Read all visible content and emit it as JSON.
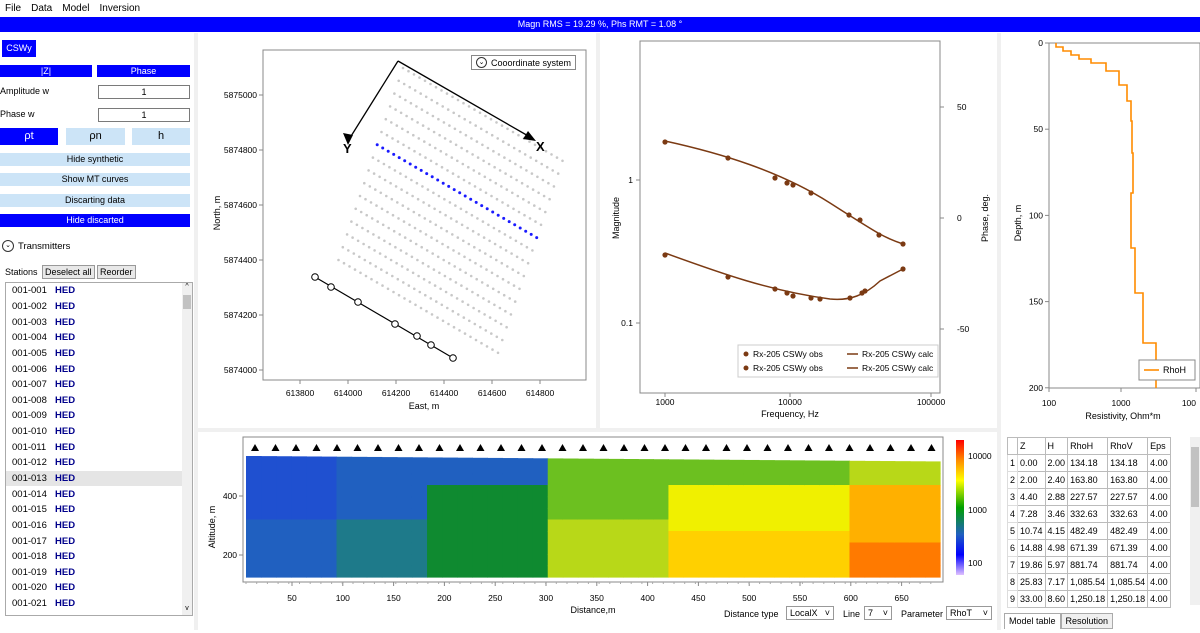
{
  "menu": [
    "File",
    "Data",
    "Model",
    "Inversion"
  ],
  "status": "Magn RMS = 19.29 %,  Phs RMT = 1.08 °",
  "left": {
    "component": "CSWy",
    "abs_btn": "|Z|",
    "phase_btn": "Phase",
    "amp_label": "Amplitude w",
    "amp_value": "1",
    "phase_label": "Phase w",
    "phase_value": "1",
    "rho_t": "ρt",
    "rho_n": "ρn",
    "h": "h",
    "hide_synthetic": "Hide synthetic",
    "show_mt": "Show MT curves",
    "discarting": "Discarting data",
    "hide_discarted": "Hide discarted",
    "transmitters": "Transmitters",
    "stations_label": "Stations",
    "deselect_all": "Deselect all",
    "reorder": "Reorder",
    "stations": [
      {
        "id": "001-001",
        "type": "HED"
      },
      {
        "id": "001-002",
        "type": "HED"
      },
      {
        "id": "001-003",
        "type": "HED"
      },
      {
        "id": "001-004",
        "type": "HED"
      },
      {
        "id": "001-005",
        "type": "HED"
      },
      {
        "id": "001-006",
        "type": "HED"
      },
      {
        "id": "001-007",
        "type": "HED"
      },
      {
        "id": "001-008",
        "type": "HED"
      },
      {
        "id": "001-009",
        "type": "HED"
      },
      {
        "id": "001-010",
        "type": "HED"
      },
      {
        "id": "001-011",
        "type": "HED"
      },
      {
        "id": "001-012",
        "type": "HED"
      },
      {
        "id": "001-013",
        "type": "HED"
      },
      {
        "id": "001-014",
        "type": "HED"
      },
      {
        "id": "001-015",
        "type": "HED"
      },
      {
        "id": "001-016",
        "type": "HED"
      },
      {
        "id": "001-017",
        "type": "HED"
      },
      {
        "id": "001-018",
        "type": "HED"
      },
      {
        "id": "001-019",
        "type": "HED"
      },
      {
        "id": "001-020",
        "type": "HED"
      },
      {
        "id": "001-021",
        "type": "HED"
      }
    ]
  },
  "map": {
    "coord_btn": "Cooordinate system",
    "xlabel": "East, m",
    "ylabel": "North, m",
    "xticks": [
      "613800",
      "614000",
      "614200",
      "614400",
      "614600",
      "614800"
    ],
    "yticks": [
      "5875000",
      "5874800",
      "5874600",
      "5874400",
      "5874200",
      "5874000"
    ],
    "axis_x": "X",
    "axis_y": "Y"
  },
  "curves": {
    "xlabel": "Frequency, Hz",
    "ylabel_left": "Magnitude",
    "ylabel_right": "Phase, deg.",
    "xticks": [
      "1000",
      "10000",
      "100000"
    ],
    "yticks_left": [
      "1",
      "0.1"
    ],
    "yticks_right": [
      "50",
      "0",
      "-50"
    ],
    "legend": [
      "Rx-205 CSWy obs",
      "Rx-205 CSWy obs",
      "Rx-205 CSWy calc",
      "Rx-205 CSWy calc"
    ]
  },
  "depth": {
    "xlabel": "Resistivity, Ohm*m",
    "ylabel": "Depth, m",
    "xticks": [
      "100",
      "1000",
      "100"
    ],
    "yticks": [
      "0",
      "50",
      "100",
      "150",
      "200"
    ],
    "legend": "RhoH"
  },
  "section": {
    "xlabel": "Distance,m",
    "ylabel": "Altitude, m",
    "xticks": [
      "50",
      "100",
      "150",
      "200",
      "250",
      "300",
      "350",
      "400",
      "450",
      "500",
      "550",
      "600",
      "650"
    ],
    "yticks": [
      "400",
      "200"
    ],
    "colorbar": [
      "10000",
      "1000",
      "100"
    ],
    "distance_type_label": "Distance type",
    "distance_type": "LocalX",
    "line_label": "Line",
    "line": "7",
    "parameter_label": "Parameter",
    "parameter": "RhoT"
  },
  "table": {
    "headers": [
      "Z",
      "H",
      "RhoH",
      "RhoV",
      "Eps"
    ],
    "rows": [
      [
        "1",
        "0.00",
        "2.00",
        "134.18",
        "134.18",
        "4.00"
      ],
      [
        "2",
        "2.00",
        "2.40",
        "163.80",
        "163.80",
        "4.00"
      ],
      [
        "3",
        "4.40",
        "2.88",
        "227.57",
        "227.57",
        "4.00"
      ],
      [
        "4",
        "7.28",
        "3.46",
        "332.63",
        "332.63",
        "4.00"
      ],
      [
        "5",
        "10.74",
        "4.15",
        "482.49",
        "482.49",
        "4.00"
      ],
      [
        "6",
        "14.88",
        "4.98",
        "671.39",
        "671.39",
        "4.00"
      ],
      [
        "7",
        "19.86",
        "5.97",
        "881.74",
        "881.74",
        "4.00"
      ],
      [
        "8",
        "25.83",
        "7.17",
        "1,085.54",
        "1,085.54",
        "4.00"
      ],
      [
        "9",
        "33.00",
        "8.60",
        "1,250.18",
        "1,250.18",
        "4.00"
      ]
    ],
    "tab_model": "Model table",
    "tab_resolution": "Resolution"
  }
}
